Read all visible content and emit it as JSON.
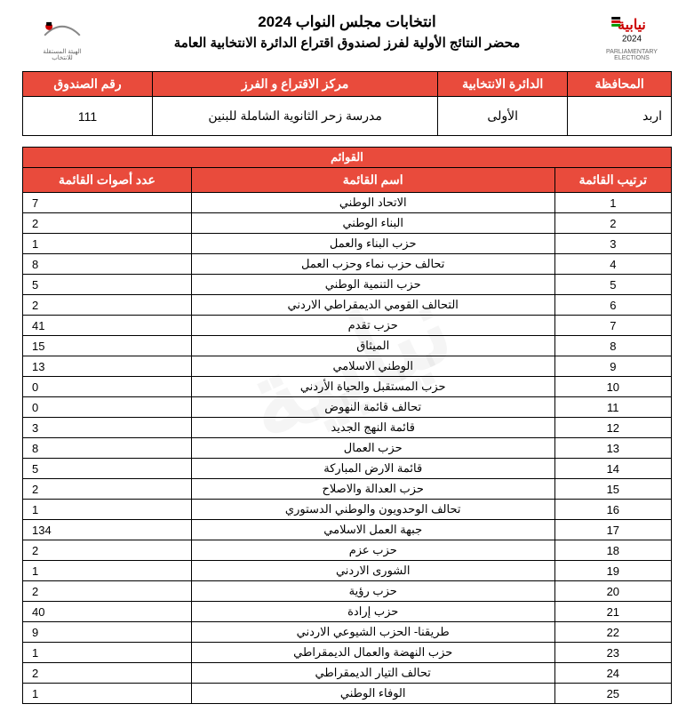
{
  "header": {
    "title_main": "انتخابات مجلس النواب 2024",
    "title_sub": "محضر النتائج الأولية لفرز لصندوق اقتراع الدائرة الانتخابية العامة",
    "logo_right_alt": "نيابية 2024",
    "logo_left_alt": "الهيئة المستقلة للانتخاب"
  },
  "info": {
    "headers": {
      "governorate": "المحافظة",
      "district": "الدائرة الانتخابية",
      "center": "مركز الاقتراع و الفرز",
      "box": "رقم الصندوق"
    },
    "values": {
      "governorate": "اربد",
      "district": "الأولى",
      "center": "مدرسة زحر الثانوية الشاملة للبنين",
      "box": "111"
    }
  },
  "lists": {
    "section_title": "القوائم",
    "col_headers": {
      "rank": "ترتيب القائمة",
      "name": "اسم القائمة",
      "votes": "عدد أصوات القائمة"
    },
    "rows": [
      {
        "rank": "1",
        "name": "الاتحاد الوطني",
        "votes": "7"
      },
      {
        "rank": "2",
        "name": "البناء الوطني",
        "votes": "2"
      },
      {
        "rank": "3",
        "name": "حزب البناء والعمل",
        "votes": "1"
      },
      {
        "rank": "4",
        "name": "تحالف حزب نماء وحزب العمل",
        "votes": "8"
      },
      {
        "rank": "5",
        "name": "حزب التنمية الوطني",
        "votes": "5"
      },
      {
        "rank": "6",
        "name": "التحالف القومي الديمقراطي الاردني",
        "votes": "2"
      },
      {
        "rank": "7",
        "name": "حزب تقدم",
        "votes": "41"
      },
      {
        "rank": "8",
        "name": "الميثاق",
        "votes": "15"
      },
      {
        "rank": "9",
        "name": "الوطني الاسلامي",
        "votes": "13"
      },
      {
        "rank": "10",
        "name": "حزب المستقبل والحياة الأردني",
        "votes": "0"
      },
      {
        "rank": "11",
        "name": "تحالف قائمة النهوض",
        "votes": "0"
      },
      {
        "rank": "12",
        "name": "قائمة النهج الجديد",
        "votes": "3"
      },
      {
        "rank": "13",
        "name": "حزب العمال",
        "votes": "8"
      },
      {
        "rank": "14",
        "name": "قائمة الارض المباركة",
        "votes": "5"
      },
      {
        "rank": "15",
        "name": "حزب العدالة والاصلاح",
        "votes": "2"
      },
      {
        "rank": "16",
        "name": "تحالف الوحدويون والوطني الدستوري",
        "votes": "1"
      },
      {
        "rank": "17",
        "name": "جبهة العمل الاسلامي",
        "votes": "134"
      },
      {
        "rank": "18",
        "name": "حزب عزم",
        "votes": "2"
      },
      {
        "rank": "19",
        "name": "الشورى الاردني",
        "votes": "1"
      },
      {
        "rank": "20",
        "name": "حزب رؤية",
        "votes": "2"
      },
      {
        "rank": "21",
        "name": "حزب إرادة",
        "votes": "40"
      },
      {
        "rank": "22",
        "name": "طريقنا- الحزب الشيوعي الاردني",
        "votes": "9"
      },
      {
        "rank": "23",
        "name": "حزب النهضة والعمال الديمقراطي",
        "votes": "1"
      },
      {
        "rank": "24",
        "name": "تحالف التيار الديمقراطي",
        "votes": "2"
      },
      {
        "rank": "25",
        "name": "الوفاء الوطني",
        "votes": "1"
      }
    ]
  },
  "colors": {
    "header_bg": "#e94b3c",
    "header_fg": "#ffffff",
    "border": "#000000"
  }
}
